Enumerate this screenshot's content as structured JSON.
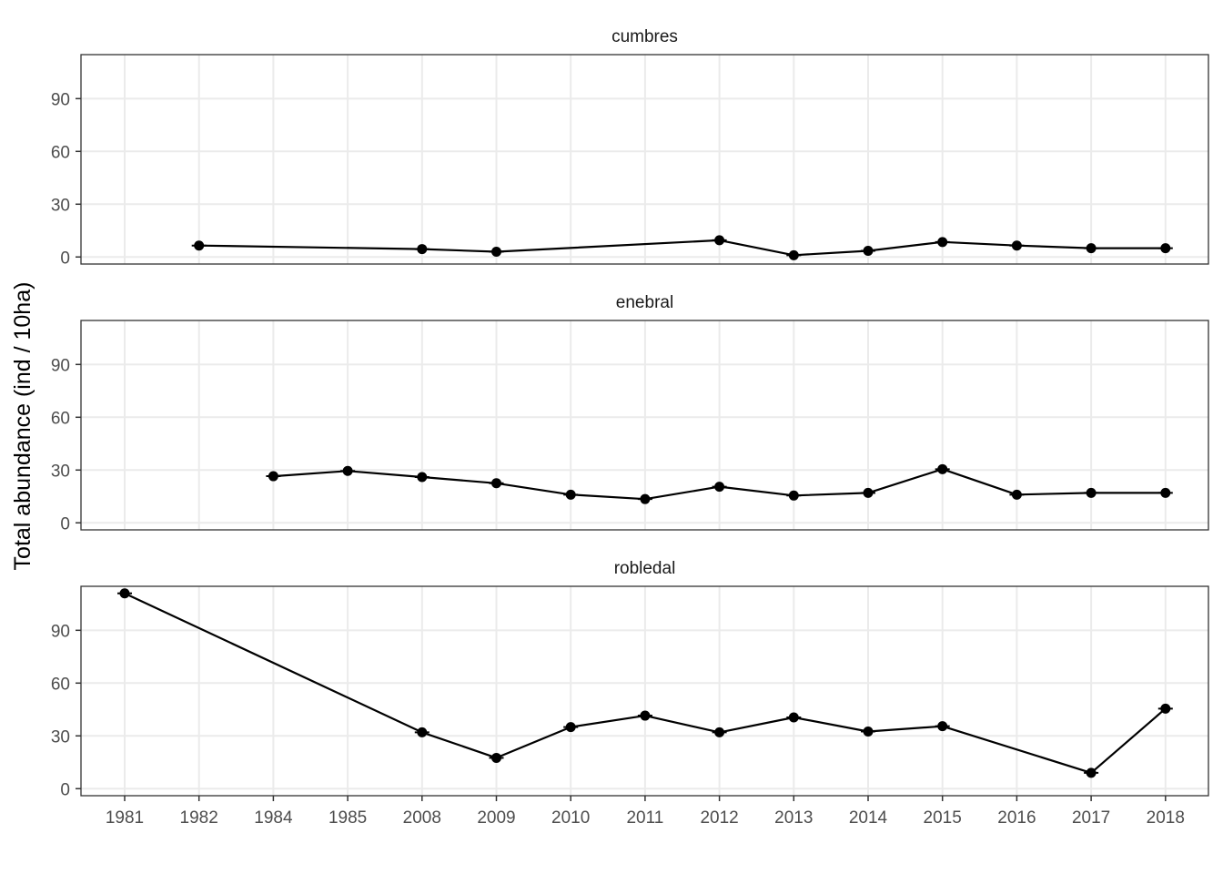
{
  "chart_data": {
    "type": "line",
    "ylabel": "Total abundance (ind / 10ha)",
    "xlabel": "",
    "categories": [
      "1981",
      "1982",
      "1984",
      "1985",
      "2008",
      "2009",
      "2010",
      "2011",
      "2012",
      "2013",
      "2014",
      "2015",
      "2016",
      "2017",
      "2018"
    ],
    "yticks": [
      0,
      30,
      60,
      90
    ],
    "ylim": [
      -4,
      115
    ],
    "grid": true,
    "legend": "none",
    "colors": {
      "line": "#000000",
      "grid": "#ebebeb",
      "panel_border": "#333333"
    },
    "panels": [
      {
        "name": "cumbres",
        "points": [
          {
            "x": "1982",
            "y": 6.5
          },
          {
            "x": "2008",
            "y": 4.5
          },
          {
            "x": "2009",
            "y": 3.0
          },
          {
            "x": "2012",
            "y": 9.5
          },
          {
            "x": "2013",
            "y": 1.0
          },
          {
            "x": "2014",
            "y": 3.5
          },
          {
            "x": "2015",
            "y": 8.5
          },
          {
            "x": "2016",
            "y": 6.5
          },
          {
            "x": "2017",
            "y": 5.0
          },
          {
            "x": "2018",
            "y": 5.0
          }
        ]
      },
      {
        "name": "enebral",
        "points": [
          {
            "x": "1984",
            "y": 26.5
          },
          {
            "x": "1985",
            "y": 29.5
          },
          {
            "x": "2008",
            "y": 26.0
          },
          {
            "x": "2009",
            "y": 22.5
          },
          {
            "x": "2010",
            "y": 16.0
          },
          {
            "x": "2011",
            "y": 13.5
          },
          {
            "x": "2012",
            "y": 20.5
          },
          {
            "x": "2013",
            "y": 15.5
          },
          {
            "x": "2014",
            "y": 17.0
          },
          {
            "x": "2015",
            "y": 30.5
          },
          {
            "x": "2016",
            "y": 16.0
          },
          {
            "x": "2017",
            "y": 17.0
          },
          {
            "x": "2018",
            "y": 17.0
          }
        ]
      },
      {
        "name": "robledal",
        "points": [
          {
            "x": "1981",
            "y": 111.0
          },
          {
            "x": "2008",
            "y": 32.0
          },
          {
            "x": "2009",
            "y": 17.5
          },
          {
            "x": "2010",
            "y": 35.0
          },
          {
            "x": "2011",
            "y": 41.5
          },
          {
            "x": "2012",
            "y": 32.0
          },
          {
            "x": "2013",
            "y": 40.5
          },
          {
            "x": "2014",
            "y": 32.5
          },
          {
            "x": "2015",
            "y": 35.5
          },
          {
            "x": "2017",
            "y": 9.0
          },
          {
            "x": "2018",
            "y": 45.5
          }
        ]
      }
    ]
  }
}
